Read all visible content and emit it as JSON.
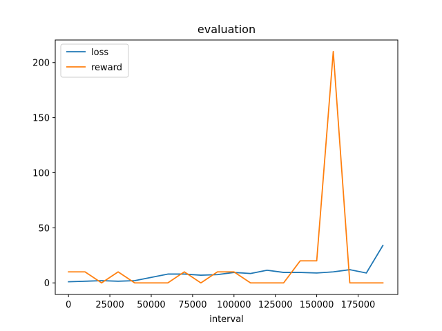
{
  "chart_data": {
    "type": "line",
    "title": "evaluation",
    "xlabel": "interval",
    "ylabel": "",
    "xlim": [
      -8000,
      199000
    ],
    "ylim": [
      -10.5,
      220.5
    ],
    "x_ticks": [
      0,
      25000,
      50000,
      75000,
      100000,
      125000,
      150000,
      175000
    ],
    "x_tick_labels": [
      "0",
      "25000",
      "50000",
      "75000",
      "100000",
      "125000",
      "150000",
      "175000"
    ],
    "y_ticks": [
      0,
      50,
      100,
      150,
      200
    ],
    "y_tick_labels": [
      "0",
      "50",
      "100",
      "150",
      "200"
    ],
    "grid": false,
    "legend": "top-left",
    "x": [
      0,
      10000,
      20000,
      30000,
      40000,
      50000,
      60000,
      70000,
      80000,
      90000,
      100000,
      110000,
      120000,
      130000,
      140000,
      150000,
      160000,
      170000,
      180000,
      190000
    ],
    "series": [
      {
        "name": "loss",
        "color": "#1f77b4",
        "values": [
          1,
          1.5,
          2,
          1.5,
          2,
          5,
          8,
          8,
          7,
          7.5,
          9.5,
          8.5,
          11.5,
          9.5,
          9.5,
          9,
          10,
          12,
          9,
          34
        ]
      },
      {
        "name": "reward",
        "color": "#ff7f0e",
        "values": [
          10,
          10,
          0,
          10,
          0,
          0,
          0,
          10,
          0,
          10,
          10,
          0,
          0,
          0,
          20,
          20,
          210,
          0,
          0,
          0
        ]
      }
    ]
  }
}
